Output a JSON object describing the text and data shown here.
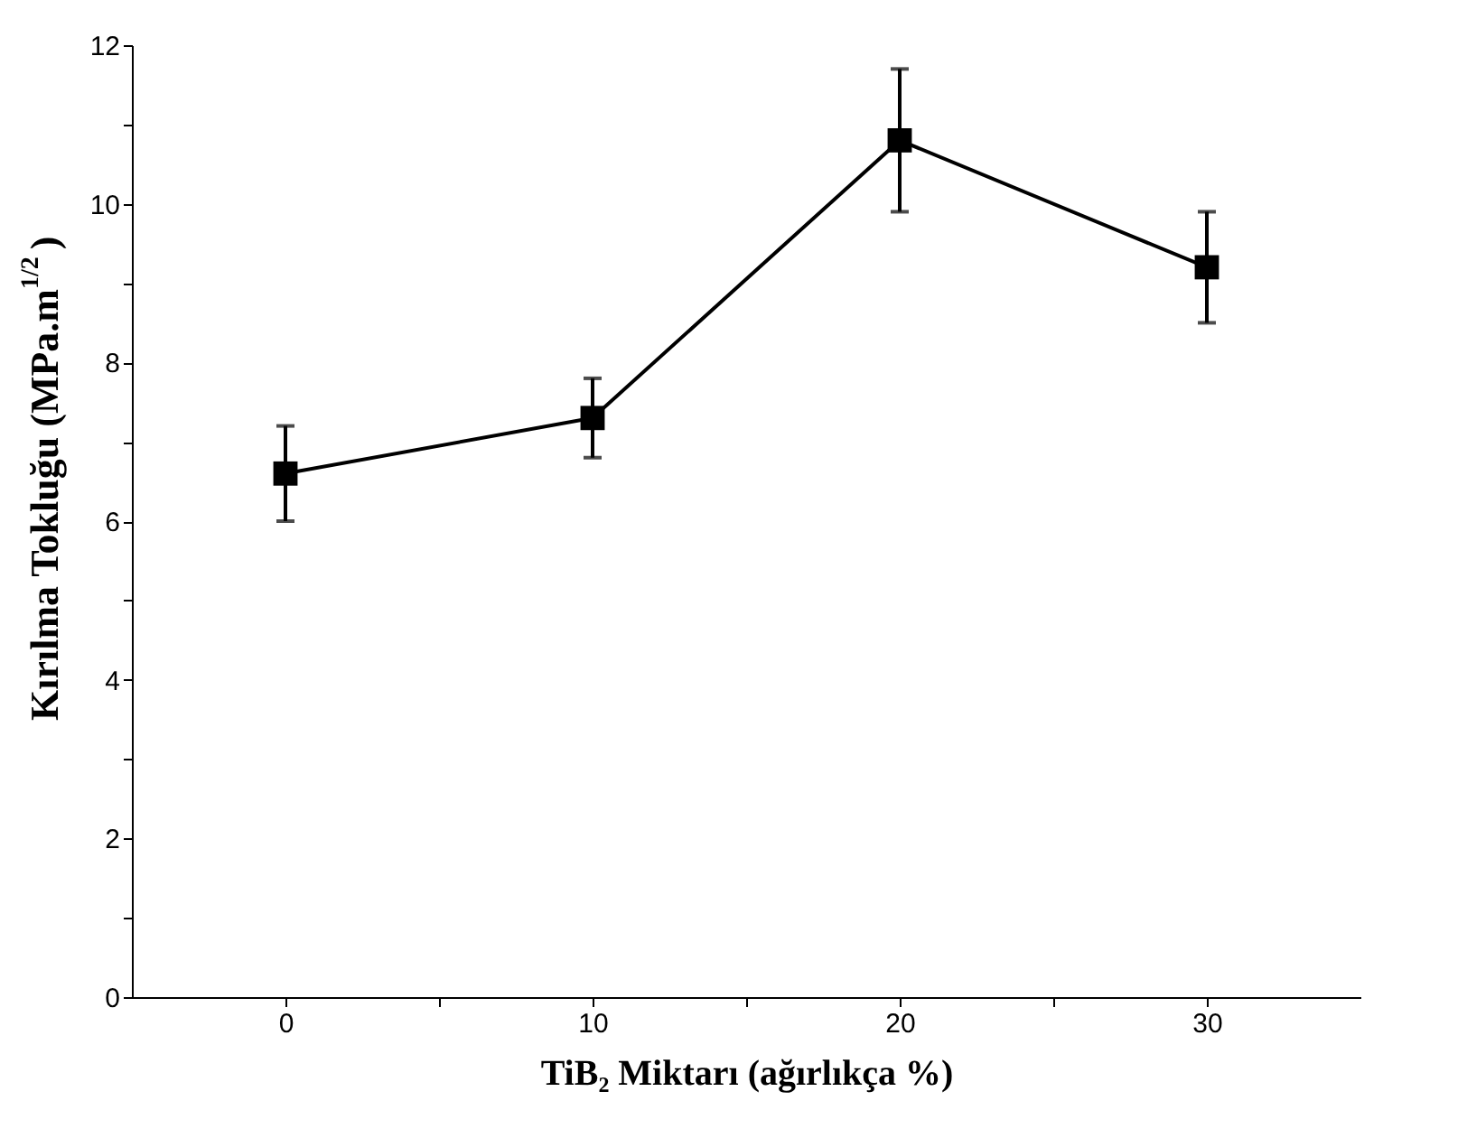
{
  "chart_data": {
    "type": "line",
    "xlabel": "TiB₂ Miktarı (ağırlıkça %)",
    "ylabel": "Kırılma Tokluğu (MPa.m$^{1/2}$)",
    "x": [
      0,
      10,
      20,
      30
    ],
    "series": [
      {
        "color": "#000000",
        "values": [
          6.6,
          7.3,
          10.8,
          9.2
        ],
        "errors": [
          [
            6.0,
            7.2
          ],
          [
            6.8,
            7.8
          ],
          [
            9.9,
            11.7
          ],
          [
            8.5,
            9.9
          ]
        ]
      }
    ],
    "xlim": [
      -5,
      35
    ],
    "ylim": [
      0,
      12
    ],
    "xticks": [
      0,
      {
        "value": 5,
        "label": null
      },
      10,
      {
        "value": 15,
        "label": null
      },
      20,
      {
        "value": 25,
        "label": null
      },
      30
    ],
    "yticks": [
      0,
      {
        "value": 1,
        "label": null
      },
      2,
      {
        "value": 3,
        "label": null
      },
      4,
      {
        "value": 5,
        "label": null
      },
      6,
      {
        "value": 7,
        "label": null
      },
      8,
      {
        "value": 9,
        "label": null
      },
      10,
      {
        "value": 11,
        "label": null
      },
      12
    ],
    "marker": "square",
    "line_style": "solid",
    "grid": false
  }
}
